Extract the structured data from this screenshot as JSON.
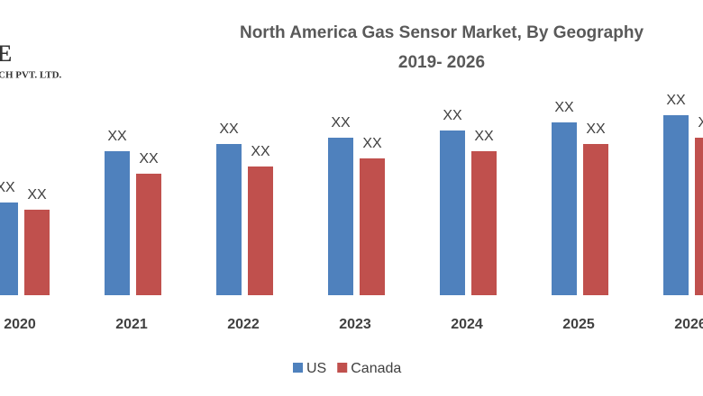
{
  "logo": {
    "mark": "E",
    "text": "CH PVT. LTD."
  },
  "chart_data": {
    "type": "bar",
    "title": "North America Gas Sensor Market, By Geography",
    "subtitle": "2019- 2026",
    "categories": [
      "2020",
      "2021",
      "2022",
      "2023",
      "2024",
      "2025",
      "2026"
    ],
    "series": [
      {
        "name": "US",
        "color": "#4f81bd",
        "values": [
          103,
          160,
          168,
          175,
          183,
          192,
          200
        ],
        "value_labels": [
          "XX",
          "XX",
          "XX",
          "XX",
          "XX",
          "XX",
          "XX"
        ]
      },
      {
        "name": "Canada",
        "color": "#c0504d",
        "values": [
          95,
          135,
          143,
          152,
          160,
          168,
          175
        ],
        "value_labels": [
          "XX",
          "XX",
          "XX",
          "XX",
          "XX",
          "XX",
          "XX"
        ]
      }
    ],
    "legend": "bottom"
  }
}
